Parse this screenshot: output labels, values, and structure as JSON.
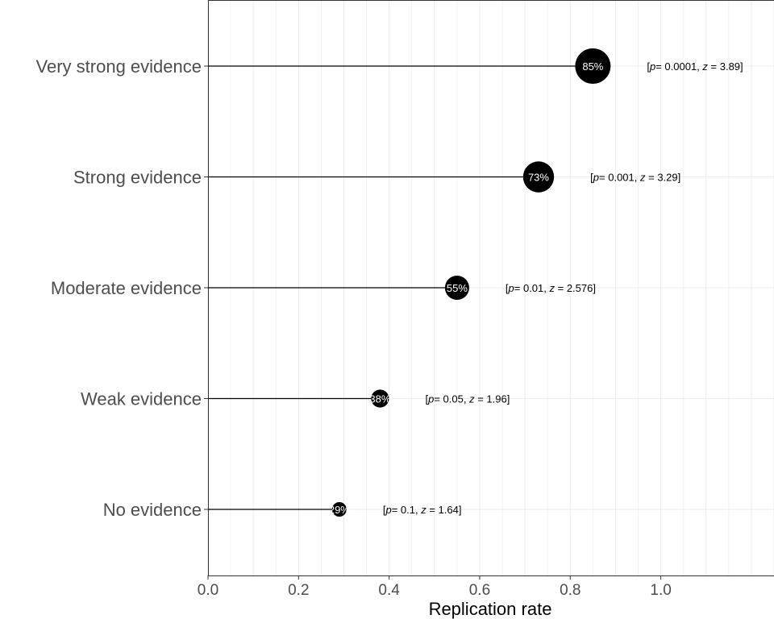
{
  "chart_data": {
    "type": "lollipop",
    "categories": [
      "Very strong evidence",
      "Strong evidence",
      "Moderate evidence",
      "Weak evidence",
      "No evidence"
    ],
    "values": [
      0.85,
      0.73,
      0.55,
      0.38,
      0.29
    ],
    "point_labels": [
      "85%",
      "73%",
      "55%",
      "38%",
      "29%"
    ],
    "annotations": [
      {
        "p_symbol": "p",
        "p_value": "= 0.0001, ",
        "z_symbol": "z",
        "z_value": " = 3.89]"
      },
      {
        "p_symbol": "p",
        "p_value": "= 0.001, ",
        "z_symbol": "z",
        "z_value": " = 3.29]"
      },
      {
        "p_symbol": "p",
        "p_value": "= 0.01, ",
        "z_symbol": "z",
        "z_value": " = 2.576]"
      },
      {
        "p_symbol": "p",
        "p_value": "= 0.05, ",
        "z_symbol": "z",
        "z_value": " = 1.96]"
      },
      {
        "p_symbol": "p",
        "p_value": "= 0.1, ",
        "z_symbol": "z",
        "z_value": " = 1.64]"
      }
    ],
    "annotation_open": "[",
    "xlabel": "Replication rate",
    "ylabel": "",
    "xlim": [
      0,
      1.25
    ],
    "x_ticks": [
      0,
      0.2,
      0.4,
      0.6,
      0.8,
      1.0
    ],
    "x_tick_labels": [
      "0.0",
      "0.2",
      "0.4",
      "0.6",
      "0.8",
      "1.0"
    ],
    "grid": true,
    "point_color": "#000000",
    "label_color": "#ffffff"
  }
}
